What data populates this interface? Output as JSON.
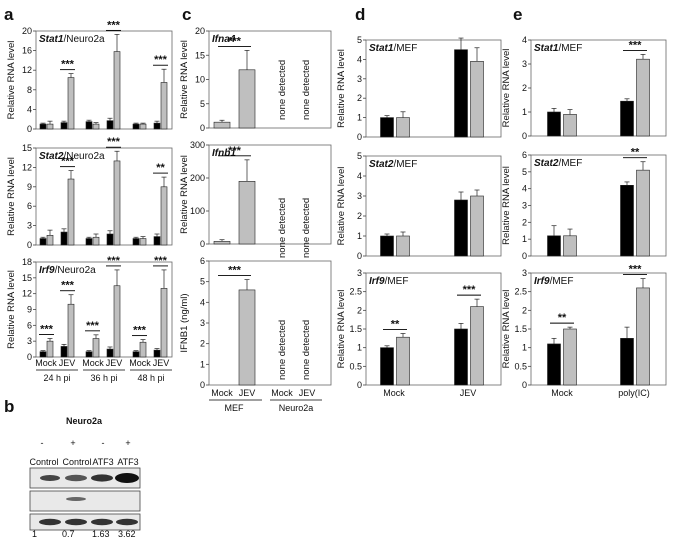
{
  "panels": {
    "a": {
      "letter": "a",
      "ylabel": "Relative RNA level",
      "x_pair_labels": [
        "Mock",
        "JEV",
        "Mock",
        "JEV",
        "Mock",
        "JEV"
      ],
      "time_labels": [
        "24 h pi",
        "36 h pi",
        "48 h pi"
      ]
    },
    "b": {
      "letter": "b",
      "cell_line": "Neuro2a",
      "signs": [
        "-",
        "+",
        "-",
        "+"
      ],
      "lanes": [
        "Control",
        "Control",
        "ATF3",
        "ATF3"
      ],
      "quant": [
        "1",
        "0.7",
        "1.63",
        "3.62"
      ]
    },
    "c": {
      "letter": "c",
      "group_labels": [
        "Mock",
        "JEV",
        "Mock",
        "JEV"
      ],
      "cell_labels": [
        "MEF",
        "Neuro2a"
      ],
      "none_detected": "none detected"
    },
    "d": {
      "letter": "d",
      "ylabel": "Relative RNA level",
      "categories": [
        "Mock",
        "JEV"
      ]
    },
    "e": {
      "letter": "e",
      "ylabel": "Relative RNA level",
      "categories": [
        "Mock",
        "poly(IC)"
      ]
    }
  },
  "chart_data": [
    {
      "id": "a1",
      "type": "bar",
      "title_gene": "Stat1",
      "title_rest": "/Neuro2a",
      "ylabel": "Relative RNA level",
      "ylim": [
        0,
        20
      ],
      "ticks": [
        0,
        4,
        8,
        12,
        16,
        20
      ],
      "categories": [
        "Mock 24h",
        "JEV 24h",
        "Mock 36h",
        "JEV 36h",
        "Mock 48h",
        "JEV 48h"
      ],
      "series": [
        {
          "name": "black",
          "values": [
            1,
            1.3,
            1.5,
            1.7,
            1,
            1.2
          ],
          "err": [
            0.2,
            0.3,
            0.3,
            0.5,
            0.2,
            0.4
          ]
        },
        {
          "name": "gray",
          "values": [
            1,
            10.5,
            1,
            15.8,
            1,
            9.5
          ],
          "err": [
            0.6,
            0.8,
            0.3,
            3.5,
            0.2,
            2.7
          ]
        }
      ],
      "significance": [
        {
          "pair": 1,
          "label": "***"
        },
        {
          "pair": 3,
          "label": "***"
        },
        {
          "pair": 5,
          "label": "***"
        }
      ]
    },
    {
      "id": "a2",
      "type": "bar",
      "title_gene": "Stat2",
      "title_rest": "/Neuro2a",
      "ylabel": "Relative RNA level",
      "ylim": [
        0,
        15
      ],
      "ticks": [
        0,
        3,
        6,
        9,
        12,
        15
      ],
      "categories": [
        "Mock 24h",
        "JEV 24h",
        "Mock 36h",
        "JEV 36h",
        "Mock 48h",
        "JEV 48h"
      ],
      "series": [
        {
          "name": "black",
          "values": [
            1,
            2,
            1,
            1.7,
            1,
            1.3
          ],
          "err": [
            0.2,
            0.5,
            0.2,
            0.5,
            0.2,
            0.4
          ]
        },
        {
          "name": "gray",
          "values": [
            1.5,
            10.2,
            1.2,
            13,
            1,
            9
          ],
          "err": [
            0.8,
            1.3,
            0.5,
            1.5,
            0.3,
            1.5
          ]
        }
      ],
      "significance": [
        {
          "pair": 1,
          "label": "***"
        },
        {
          "pair": 3,
          "label": "***"
        },
        {
          "pair": 5,
          "label": "**"
        }
      ]
    },
    {
      "id": "a3",
      "type": "bar",
      "title_gene": "Irf9",
      "title_rest": "/Neuro2a",
      "ylabel": "Relative RNA level",
      "ylim": [
        0,
        18
      ],
      "ticks": [
        0,
        3,
        6,
        9,
        12,
        15,
        18
      ],
      "categories": [
        "Mock 24h",
        "JEV 24h",
        "Mock 36h",
        "JEV 36h",
        "Mock 48h",
        "JEV 48h"
      ],
      "series": [
        {
          "name": "black",
          "values": [
            1,
            2,
            1,
            1.5,
            1,
            1.3
          ],
          "err": [
            0.2,
            0.4,
            0.2,
            0.4,
            0.2,
            0.3
          ]
        },
        {
          "name": "gray",
          "values": [
            3,
            10,
            3.5,
            13.5,
            2.8,
            13
          ],
          "err": [
            0.5,
            1.8,
            0.7,
            3,
            0.5,
            3.5
          ]
        }
      ],
      "significance": [
        {
          "pair": 0,
          "label": "***"
        },
        {
          "pair": 1,
          "label": "***"
        },
        {
          "pair": 2,
          "label": "***"
        },
        {
          "pair": 3,
          "label": "***"
        },
        {
          "pair": 4,
          "label": "***"
        },
        {
          "pair": 5,
          "label": "***"
        }
      ]
    },
    {
      "id": "c1",
      "type": "bar",
      "title_gene": "Ifna4",
      "title_rest": "",
      "ylabel": "Relative RNA level",
      "ylim": [
        0,
        20
      ],
      "ticks": [
        0,
        5,
        10,
        15,
        20
      ],
      "categories": [
        "Mock MEF",
        "JEV MEF"
      ],
      "values": [
        1.2,
        12
      ],
      "err": [
        0.4,
        4
      ],
      "significance": [
        {
          "label": "***"
        }
      ]
    },
    {
      "id": "c2",
      "type": "bar",
      "title_gene": "Ifnb1",
      "title_rest": "",
      "ylabel": "Relative RNA level",
      "ylim": [
        0,
        300
      ],
      "ticks": [
        0,
        100,
        200,
        300
      ],
      "categories": [
        "Mock MEF",
        "JEV MEF"
      ],
      "values": [
        8,
        190
      ],
      "err": [
        5,
        65
      ],
      "significance": [
        {
          "label": "***"
        }
      ]
    },
    {
      "id": "c3",
      "type": "bar",
      "title_gene": "",
      "title_rest": "",
      "ylabel": "IFNB1 (ng/ml)",
      "ylim": [
        0,
        6
      ],
      "ticks": [
        0,
        1,
        2,
        3,
        4,
        5,
        6
      ],
      "categories": [
        "Mock MEF",
        "JEV MEF"
      ],
      "values": [
        0,
        4.6
      ],
      "err": [
        0,
        0.5
      ],
      "significance": [
        {
          "label": "***"
        }
      ]
    },
    {
      "id": "d1",
      "type": "bar",
      "title_gene": "Stat1",
      "title_rest": "/MEF",
      "ylabel": "Relative RNA level",
      "ylim": [
        0,
        5
      ],
      "ticks": [
        0,
        1,
        2,
        3,
        4,
        5
      ],
      "categories": [
        "Mock",
        "JEV"
      ],
      "series": [
        {
          "name": "black",
          "values": [
            1,
            4.5
          ],
          "err": [
            0.1,
            0.6
          ]
        },
        {
          "name": "gray",
          "values": [
            1,
            3.9
          ],
          "err": [
            0.3,
            0.7
          ]
        }
      ],
      "significance": []
    },
    {
      "id": "d2",
      "type": "bar",
      "title_gene": "Stat2",
      "title_rest": "/MEF",
      "ylabel": "Relative RNA level",
      "ylim": [
        0,
        5
      ],
      "ticks": [
        0,
        1,
        2,
        3,
        4,
        5
      ],
      "categories": [
        "Mock",
        "JEV"
      ],
      "series": [
        {
          "name": "black",
          "values": [
            1,
            2.8
          ],
          "err": [
            0.1,
            0.4
          ]
        },
        {
          "name": "gray",
          "values": [
            1,
            3
          ],
          "err": [
            0.2,
            0.3
          ]
        }
      ],
      "significance": []
    },
    {
      "id": "d3",
      "type": "bar",
      "title_gene": "Irf9",
      "title_rest": "/MEF",
      "ylabel": "Relative RNA level",
      "ylim": [
        0,
        3
      ],
      "ticks": [
        0,
        0.5,
        1,
        1.5,
        2,
        2.5,
        3
      ],
      "categories": [
        "Mock",
        "JEV"
      ],
      "series": [
        {
          "name": "black",
          "values": [
            1,
            1.5
          ],
          "err": [
            0.05,
            0.15
          ]
        },
        {
          "name": "gray",
          "values": [
            1.28,
            2.1
          ],
          "err": [
            0.1,
            0.2
          ]
        }
      ],
      "significance": [
        {
          "pair": 0,
          "label": "**"
        },
        {
          "pair": 1,
          "label": "***"
        }
      ]
    },
    {
      "id": "e1",
      "type": "bar",
      "title_gene": "Stat1",
      "title_rest": "/MEF",
      "ylabel": "Relative RNA level",
      "ylim": [
        0,
        4
      ],
      "ticks": [
        0,
        1,
        2,
        3,
        4
      ],
      "categories": [
        "Mock",
        "poly(IC)"
      ],
      "series": [
        {
          "name": "black",
          "values": [
            1,
            1.45
          ],
          "err": [
            0.15,
            0.1
          ]
        },
        {
          "name": "gray",
          "values": [
            0.9,
            3.2
          ],
          "err": [
            0.2,
            0.2
          ]
        }
      ],
      "significance": [
        {
          "pair": 1,
          "label": "***"
        }
      ]
    },
    {
      "id": "e2",
      "type": "bar",
      "title_gene": "Stat2",
      "title_rest": "/MEF",
      "ylabel": "Relative RNA level",
      "ylim": [
        0,
        6
      ],
      "ticks": [
        0,
        1,
        2,
        3,
        4,
        5,
        6
      ],
      "categories": [
        "Mock",
        "poly(IC)"
      ],
      "series": [
        {
          "name": "black",
          "values": [
            1.2,
            4.2
          ],
          "err": [
            0.6,
            0.2
          ]
        },
        {
          "name": "gray",
          "values": [
            1.2,
            5.1
          ],
          "err": [
            0.4,
            0.5
          ]
        }
      ],
      "significance": [
        {
          "pair": 1,
          "label": "**"
        }
      ]
    },
    {
      "id": "e3",
      "type": "bar",
      "title_gene": "Irf9",
      "title_rest": "/MEF",
      "ylabel": "Relative RNA level",
      "ylim": [
        0,
        3
      ],
      "ticks": [
        0,
        0.5,
        1,
        1.5,
        2,
        2.5,
        3
      ],
      "categories": [
        "Mock",
        "poly(IC)"
      ],
      "series": [
        {
          "name": "black",
          "values": [
            1.1,
            1.25
          ],
          "err": [
            0.15,
            0.3
          ]
        },
        {
          "name": "gray",
          "values": [
            1.5,
            2.6
          ],
          "err": [
            0.05,
            0.25
          ]
        }
      ],
      "significance": [
        {
          "pair": 0,
          "label": "**"
        },
        {
          "pair": 1,
          "label": "***"
        }
      ]
    }
  ]
}
